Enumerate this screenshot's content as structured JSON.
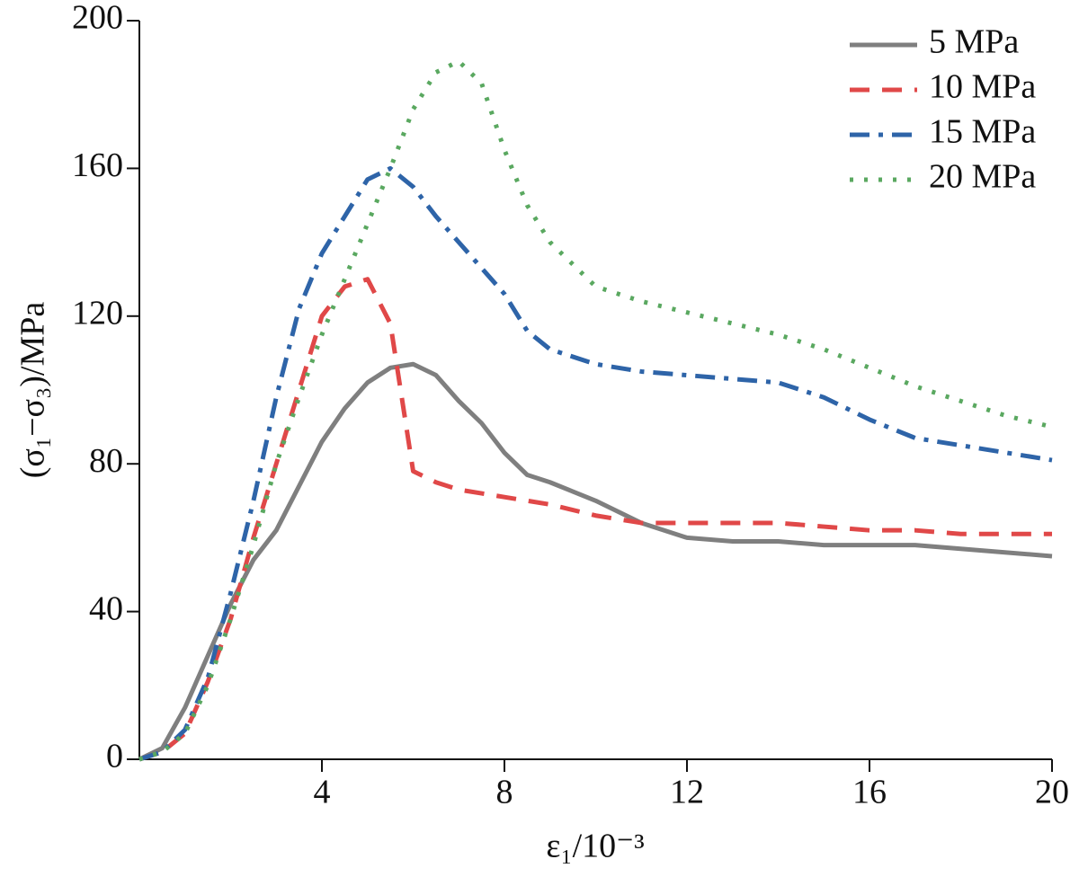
{
  "chart_data": {
    "type": "line",
    "x_label": "ε₁/10⁻³",
    "y_label": "(σ₁−σ₃)/MPa",
    "x": [
      0,
      0.5,
      1,
      1.5,
      2,
      2.5,
      3,
      3.5,
      4,
      4.5,
      5,
      5.5,
      6,
      6.5,
      7,
      7.5,
      8,
      8.5,
      9,
      10,
      11,
      12,
      13,
      14,
      15,
      16,
      17,
      18,
      19,
      20
    ],
    "series": [
      {
        "name": "5 MPa",
        "color": "#7f7f7f",
        "style": "solid",
        "values": [
          0,
          3,
          14,
          28,
          42,
          54,
          62,
          74,
          86,
          95,
          102,
          106,
          107,
          104,
          97,
          91,
          83,
          77,
          75,
          70,
          64,
          60,
          59,
          59,
          58,
          58,
          58,
          57,
          56,
          55
        ]
      },
      {
        "name": "10 MPa",
        "color": "#e04848",
        "style": "dashed",
        "values": [
          0,
          2,
          7,
          21,
          38,
          60,
          80,
          100,
          120,
          128,
          130,
          118,
          78,
          75,
          73,
          72,
          71,
          70,
          69,
          66,
          64,
          64,
          64,
          64,
          63,
          62,
          62,
          61,
          61,
          61
        ]
      },
      {
        "name": "15 MPa",
        "color": "#2e64a8",
        "style": "dashdot",
        "values": [
          0,
          2,
          8,
          22,
          45,
          70,
          98,
          122,
          137,
          147,
          157,
          160,
          155,
          147,
          140,
          133,
          126,
          116,
          111,
          107,
          105,
          104,
          103,
          102,
          98,
          92,
          87,
          85,
          83,
          81
        ]
      },
      {
        "name": "20 MPa",
        "color": "#5aa860",
        "style": "dotted",
        "values": [
          0,
          2,
          7,
          20,
          38,
          58,
          80,
          98,
          115,
          130,
          145,
          160,
          176,
          186,
          189,
          183,
          165,
          150,
          140,
          128,
          124,
          121,
          118,
          115,
          111,
          106,
          101,
          97,
          93,
          90
        ]
      }
    ],
    "xlim": [
      0,
      20
    ],
    "xticks": [
      4,
      8,
      12,
      16,
      20
    ],
    "ylim": [
      0,
      200
    ],
    "yticks": [
      0,
      40,
      80,
      120,
      160,
      200
    ],
    "legend": "top-right"
  }
}
